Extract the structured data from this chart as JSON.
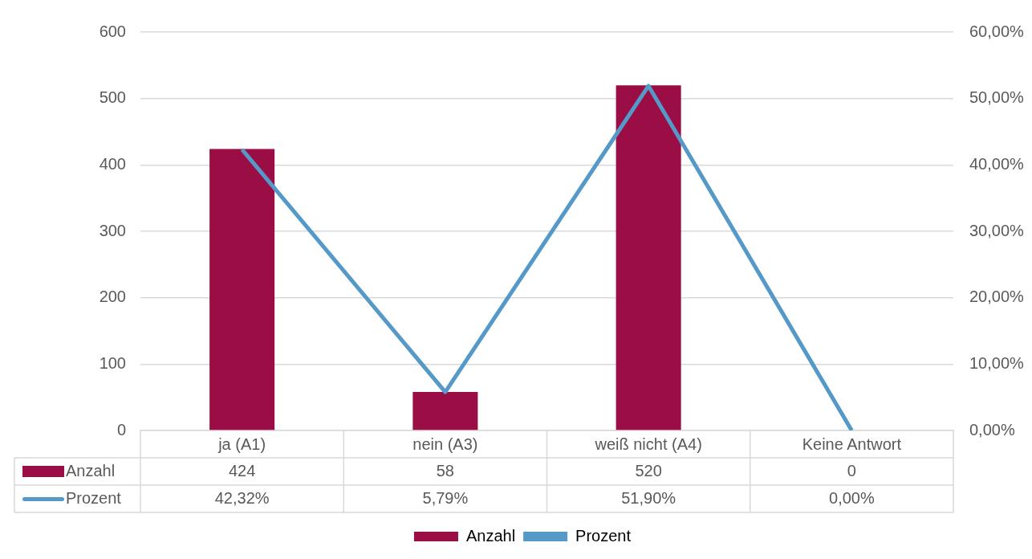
{
  "chart_data": {
    "type": "bar",
    "categories": [
      "ja (A1)",
      "nein (A3)",
      "weiß nicht (A4)",
      "Keine Antwort"
    ],
    "series": [
      {
        "name": "Anzahl",
        "color": "#9b0d45",
        "values": [
          424,
          58,
          520,
          0
        ],
        "value_labels": [
          "424",
          "58",
          "520",
          "0"
        ]
      },
      {
        "name": "Prozent",
        "type": "line",
        "axis": "y2",
        "color": "#5499c7",
        "marker": "none",
        "values": [
          42.32,
          5.79,
          51.9,
          0
        ],
        "value_labels": [
          "42,32%",
          "5,79%",
          "51,90%",
          "0,00%"
        ]
      }
    ],
    "ylim": [
      0,
      600
    ],
    "yticks": [
      0,
      100,
      200,
      300,
      400,
      500,
      600
    ],
    "y2lim": [
      0,
      60
    ],
    "y2ticks": [
      {
        "value": 0,
        "label": "0,00%"
      },
      {
        "value": 10,
        "label": "10,00%"
      },
      {
        "value": 20,
        "label": "20,00%"
      },
      {
        "value": 30,
        "label": "30,00%"
      },
      {
        "value": 40,
        "label": "40,00%"
      },
      {
        "value": 50,
        "label": "50,00%"
      },
      {
        "value": 60,
        "label": "60,00%"
      }
    ],
    "grid": "y",
    "legend": "bottom"
  }
}
